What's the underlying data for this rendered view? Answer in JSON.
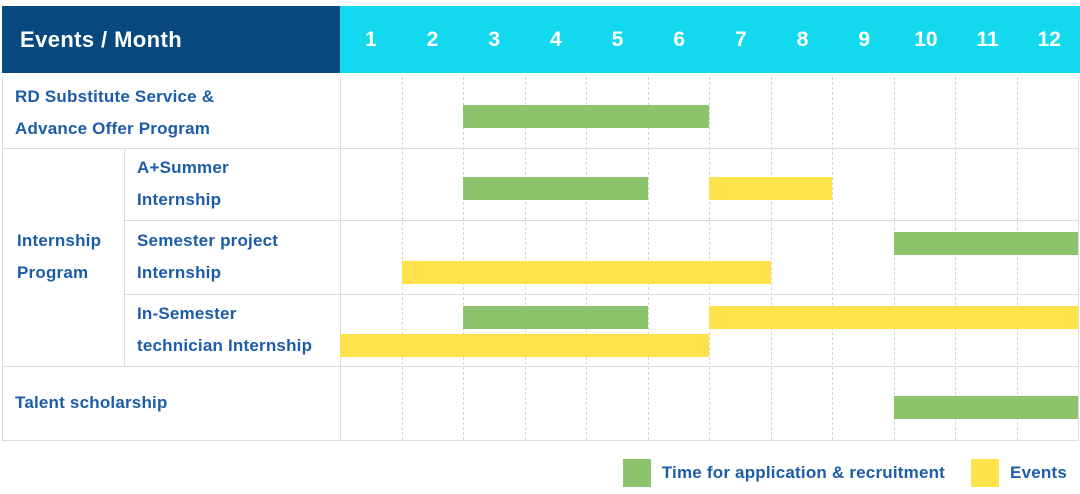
{
  "header": {
    "title": "Events / Month",
    "months": [
      "1",
      "2",
      "3",
      "4",
      "5",
      "6",
      "7",
      "8",
      "9",
      "10",
      "11",
      "12"
    ]
  },
  "colors": {
    "header_bg": "#07497f",
    "months_header_bg": "#12d9ee",
    "application_green": "#8cc46d",
    "event_yellow": "#ffe24b",
    "label_blue": "#1c5ca8",
    "grid_line": "#dcdcdc"
  },
  "chart_data": {
    "type": "bar",
    "subtype": "gantt",
    "x_axis": {
      "label": "Month",
      "categories": [
        1,
        2,
        3,
        4,
        5,
        6,
        7,
        8,
        9,
        10,
        11,
        12
      ],
      "range": [
        1,
        12
      ]
    },
    "row_axis_label": "Events",
    "grid": "dashed-monthly",
    "legend_position": "bottom-right",
    "group_label": {
      "line1": "Internship",
      "line2": "Program",
      "spans_rows": [
        2,
        3,
        4
      ]
    },
    "rows": [
      {
        "label": "RD Substitute Service & Advance Offer Program",
        "label_line1": "RD Substitute Service &",
        "label_line2": "Advance Offer Program",
        "group": null,
        "lines": 1,
        "bars": [
          {
            "kind": "application",
            "series": "Time for application & recruitment",
            "start_month": 3,
            "end_month": 6,
            "line": 0
          }
        ]
      },
      {
        "label": "A+Summer Internship",
        "label_line1": "A+Summer",
        "label_line2": "Internship",
        "group": "Internship Program",
        "lines": 1,
        "bars": [
          {
            "kind": "application",
            "series": "Time for application & recruitment",
            "start_month": 3,
            "end_month": 5,
            "line": 0
          },
          {
            "kind": "event",
            "series": "Events",
            "start_month": 7,
            "end_month": 8,
            "line": 0
          }
        ]
      },
      {
        "label": "Semester project Internship",
        "label_line1": "Semester project",
        "label_line2": "Internship",
        "group": "Internship Program",
        "lines": 2,
        "bars": [
          {
            "kind": "application",
            "series": "Time for application & recruitment",
            "start_month": 10,
            "end_month": 12,
            "line": 0
          },
          {
            "kind": "event",
            "series": "Events",
            "start_month": 2,
            "end_month": 7,
            "line": 1
          }
        ]
      },
      {
        "label": "In-Semester technician Internship",
        "label_line1": "In-Semester",
        "label_line2": "technician Internship",
        "group": "Internship Program",
        "lines": 2,
        "bars": [
          {
            "kind": "application",
            "series": "Time for application & recruitment",
            "start_month": 3,
            "end_month": 5,
            "line": 0
          },
          {
            "kind": "event",
            "series": "Events",
            "start_month": 7,
            "end_month": 12,
            "line": 0
          },
          {
            "kind": "event",
            "series": "Events",
            "start_month": 1,
            "end_month": 6,
            "line": 1
          }
        ]
      },
      {
        "label": "Talent scholarship",
        "label_line1": "Talent scholarship",
        "label_line2": "",
        "group": null,
        "lines": 1,
        "bars": [
          {
            "kind": "application",
            "series": "Time for application & recruitment",
            "start_month": 10,
            "end_month": 12,
            "line": 0
          }
        ]
      }
    ],
    "legend": [
      {
        "kind": "application",
        "series": "Time for application & recruitment",
        "color_key": "application_green"
      },
      {
        "kind": "event",
        "series": "Events",
        "color_key": "event_yellow"
      }
    ]
  }
}
